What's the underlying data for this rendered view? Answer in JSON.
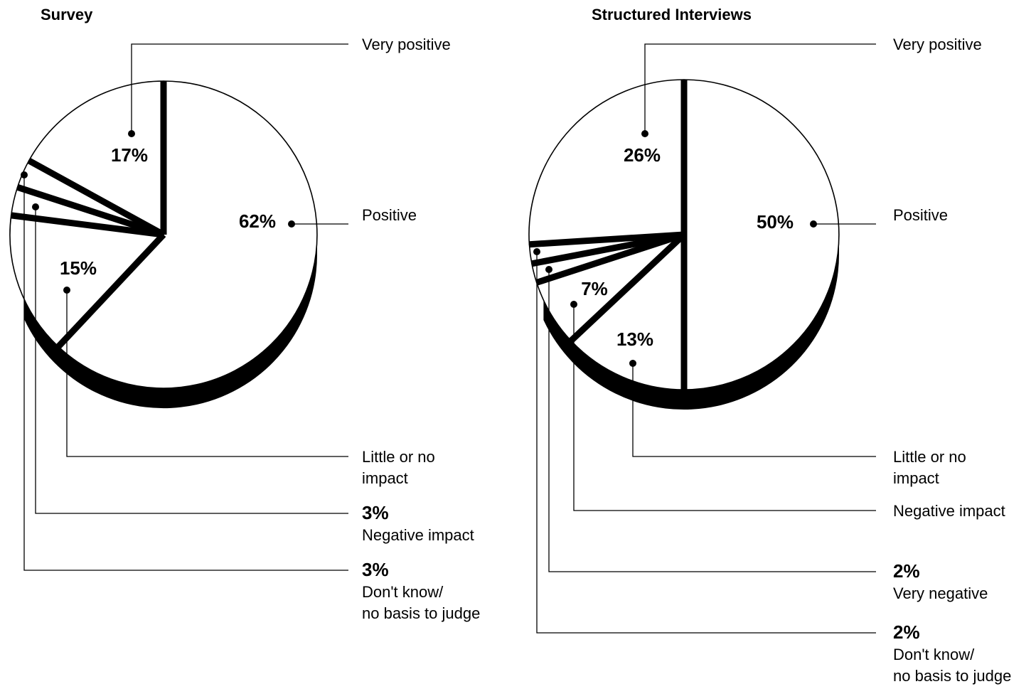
{
  "chart_data": [
    {
      "type": "pie",
      "title": "Survey",
      "slices": [
        {
          "label": "Positive",
          "value": 62,
          "pct_label": "62%",
          "legend_lines": [
            "Positive"
          ]
        },
        {
          "label": "Little or no impact",
          "value": 15,
          "pct_label": "15%",
          "legend_lines": [
            "Little or no",
            "impact"
          ]
        },
        {
          "label": "Don't know/ no basis to judge",
          "value": 3,
          "pct_label": "",
          "legend_pct": "3%",
          "legend_lines": [
            "Don't know/",
            "no basis to judge"
          ]
        },
        {
          "label": "Negative impact",
          "value": 3,
          "pct_label": "",
          "legend_pct": "3%",
          "legend_lines": [
            "Negative impact"
          ]
        },
        {
          "label": "Very positive",
          "value": 17,
          "pct_label": "17%",
          "legend_lines": [
            "Very positive"
          ]
        }
      ]
    },
    {
      "type": "pie",
      "title": "Structured Interviews",
      "slices": [
        {
          "label": "Positive",
          "value": 50,
          "pct_label": "50%",
          "legend_lines": [
            "Positive"
          ]
        },
        {
          "label": "Little or no impact",
          "value": 13,
          "pct_label": "13%",
          "legend_lines": [
            "Little or no",
            "impact"
          ]
        },
        {
          "label": "Negative impact",
          "value": 7,
          "pct_label": "7%",
          "legend_lines": [
            "Negative impact"
          ]
        },
        {
          "label": "Very negative",
          "value": 2,
          "pct_label": "",
          "legend_pct": "2%",
          "legend_lines": [
            "Very negative"
          ]
        },
        {
          "label": "Don't know/ no basis to judge",
          "value": 2,
          "pct_label": "",
          "legend_pct": "2%",
          "legend_lines": [
            "Don't know/",
            "no basis to judge"
          ]
        },
        {
          "label": "Very positive",
          "value": 26,
          "pct_label": "26%",
          "legend_lines": [
            "Very positive"
          ]
        }
      ]
    }
  ]
}
